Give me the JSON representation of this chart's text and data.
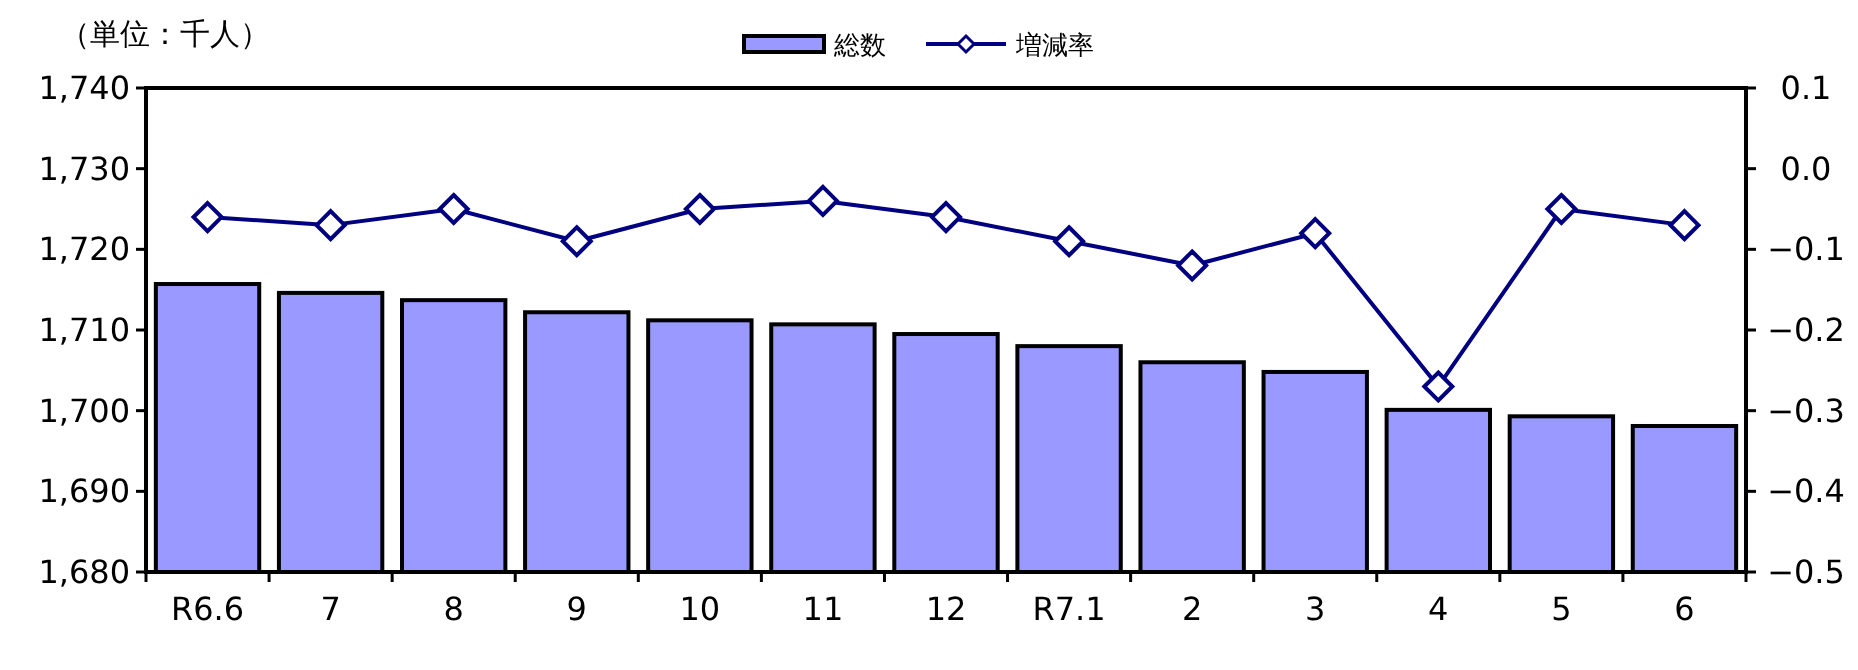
{
  "chart_data": {
    "type": "bar",
    "annotations": [
      "（単位：千人）"
    ],
    "categories": [
      "R6.6",
      "7",
      "8",
      "9",
      "10",
      "11",
      "12",
      "R7.1",
      "2",
      "3",
      "4",
      "5",
      "6"
    ],
    "series": [
      {
        "name": "総数",
        "color": "#9999ff",
        "values": [
          1715.7,
          1714.6,
          1713.7,
          1712.2,
          1711.2,
          1710.7,
          1709.5,
          1708.0,
          1706.0,
          1704.8,
          1700.1,
          1699.3,
          1698.1
        ]
      },
      {
        "name": "増減率",
        "type": "line",
        "axis": "y2",
        "color": "#000080",
        "marker": "diamond",
        "values": [
          -0.06,
          -0.07,
          -0.05,
          -0.09,
          -0.05,
          -0.04,
          -0.06,
          -0.09,
          -0.12,
          -0.08,
          -0.27,
          -0.05,
          -0.07
        ]
      }
    ],
    "ylim": [
      1680,
      1740
    ],
    "yticks": [
      {
        "value": 1680,
        "label": "1,680"
      },
      {
        "value": 1690,
        "label": "1,690"
      },
      {
        "value": 1700,
        "label": "1,700"
      },
      {
        "value": 1710,
        "label": "1,710"
      },
      {
        "value": 1720,
        "label": "1,720"
      },
      {
        "value": 1730,
        "label": "1,730"
      },
      {
        "value": 1740,
        "label": "1,740"
      }
    ],
    "y2lim": [
      -0.5,
      0.1
    ],
    "y2ticks": [
      {
        "value": -0.5,
        "label": "−0.5"
      },
      {
        "value": -0.4,
        "label": "−0.4"
      },
      {
        "value": -0.3,
        "label": "−0.3"
      },
      {
        "value": -0.2,
        "label": "−0.2"
      },
      {
        "value": -0.1,
        "label": "−0.1"
      },
      {
        "value": 0,
        "label": "0.0"
      },
      0.1
    ],
    "grid": false,
    "legend": "top"
  }
}
